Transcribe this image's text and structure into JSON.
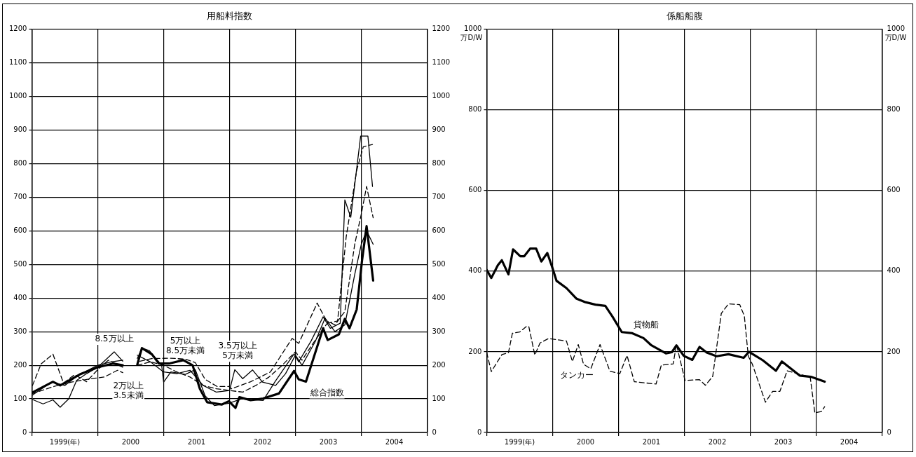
{
  "chart_data": [
    {
      "type": "line",
      "title": "用船料指数",
      "xlim": [
        1999,
        2005
      ],
      "xticks": [
        {
          "value": 1999,
          "label": null
        },
        {
          "value": 1999.5,
          "label": "1999(年)"
        },
        {
          "value": 2000,
          "label": null
        },
        {
          "value": 2000.5,
          "label": "2000"
        },
        {
          "value": 2001,
          "label": null
        },
        {
          "value": 2001.5,
          "label": "2001"
        },
        {
          "value": 2002,
          "label": null
        },
        {
          "value": 2002.5,
          "label": "2002"
        },
        {
          "value": 2003,
          "label": null
        },
        {
          "value": 2003.5,
          "label": "2003"
        },
        {
          "value": 2004,
          "label": null
        },
        {
          "value": 2004.5,
          "label": "2004"
        },
        {
          "value": 2005,
          "label": null
        }
      ],
      "ylim": [
        0,
        1200
      ],
      "yticks": [
        0,
        100,
        200,
        300,
        400,
        500,
        600,
        700,
        800,
        900,
        1000,
        1100,
        1200
      ],
      "y2lim": [
        0,
        1200
      ],
      "y2ticks": [
        0,
        100,
        200,
        300,
        400,
        500,
        600,
        700,
        800,
        900,
        1000,
        1100,
        1200
      ],
      "grid": true,
      "legend": false,
      "marker": "none",
      "series": [
        {
          "name": "総合指数",
          "color": "#000000",
          "line_style": "solid",
          "x": [
            1999.01,
            1999.32,
            1999.43,
            1999.73,
            2000.0,
            2000.23,
            2000.38,
            2000.45,
            2000.6,
            2000.67,
            2000.82,
            2000.93,
            2001.08,
            2001.3,
            2001.44,
            2001.55,
            2001.66,
            2001.88,
            2001.99,
            2002.09,
            2002.15,
            2002.32,
            2002.51,
            2002.75,
            2002.98,
            2003.05,
            2003.16,
            2003.42,
            2003.49,
            2003.66,
            2003.75,
            2003.82,
            2003.93,
            2004.01,
            2004.08,
            2004.18
          ],
          "values": [
            119,
            151,
            140,
            173,
            194,
            205,
            200,
            null,
            202,
            251,
            233,
            205,
            205,
            215,
            200,
            130,
            90,
            83,
            93,
            73,
            105,
            96,
            101,
            116,
            183,
            158,
            151,
            310,
            275,
            292,
            338,
            310,
            366,
            510,
            614,
            452
          ]
        },
        {
          "name": "8.5万以上",
          "color": "#000000",
          "line_style": "solid",
          "x": [
            1999.01,
            1999.17,
            1999.32,
            1999.43,
            1999.56,
            1999.68,
            1999.83,
            2000.0,
            2000.25,
            2000.38,
            2000.45,
            2000.6,
            2000.67,
            2000.78,
            2000.97,
            2001.0,
            2001.11,
            2001.33,
            2001.48,
            2001.63,
            2001.77,
            2001.99,
            2002.18,
            2002.51,
            2002.69,
            2002.98,
            2003.05,
            2003.24,
            2003.42,
            2003.53,
            2003.68,
            2003.75,
            2003.84,
            2003.99,
            2004.1,
            2004.17
          ],
          "values": [
            98,
            85,
            97,
            75,
            100,
            155,
            175,
            194,
            240,
            212,
            null,
            220,
            251,
            244,
            200,
            150,
            180,
            173,
            187,
            109,
            80,
            87,
            100,
            95,
            151,
            234,
            210,
            273,
            344,
            310,
            325,
            692,
            640,
            882,
            882,
            732
          ]
        },
        {
          "name": "5万以上\n8.5万未満",
          "color": "#000000",
          "line_style": "dashed",
          "x": [
            1999.01,
            1999.14,
            1999.32,
            1999.48,
            1999.65,
            1999.83,
            2000.0,
            2000.16,
            2000.38,
            2000.45,
            2000.64,
            2000.82,
            2001.11,
            2001.33,
            2001.48,
            2001.63,
            2001.81,
            2001.99,
            2002.03,
            2002.32,
            2002.62,
            2002.95,
            2003.05,
            2003.33,
            2003.49,
            2003.64,
            2003.77,
            2003.93,
            2004.03,
            2004.17
          ],
          "values": [
            140,
            204,
            233,
            147,
            172,
            151,
            187,
            215,
            194,
            null,
            212,
            220,
            221,
            218,
            208,
            158,
            137,
            137,
            130,
            151,
            180,
            280,
            265,
            385,
            325,
            332,
            581,
            780,
            850,
            857
          ]
        },
        {
          "name": "3.5万以上\n5万未満",
          "color": "#000000",
          "line_style": "solid",
          "x": [
            1999.0,
            1999.3,
            1999.5,
            1999.7,
            2000.0,
            2000.2,
            2000.38,
            2000.45,
            2000.6,
            2000.8,
            2001.0,
            2001.2,
            2001.4,
            2001.6,
            2001.8,
            2002.0,
            2002.08,
            2002.2,
            2002.35,
            2002.5,
            2002.7,
            2002.85,
            2003.0,
            2003.1,
            2003.3,
            2003.45,
            2003.6,
            2003.75,
            2003.9,
            2004.0,
            2004.08,
            2004.18
          ],
          "values": [
            110,
            150,
            140,
            170,
            200,
            210,
            215,
            null,
            230,
            210,
            180,
            175,
            185,
            140,
            120,
            125,
            187,
            160,
            186,
            150,
            140,
            175,
            230,
            200,
            270,
            340,
            300,
            320,
            470,
            560,
            600,
            560
          ]
        },
        {
          "name": "2万以上\n3.5未満",
          "color": "#000000",
          "line_style": "dashed",
          "x": [
            1999.0,
            1999.3,
            1999.6,
            1999.9,
            2000.1,
            2000.3,
            2000.38,
            2000.45,
            2000.6,
            2000.8,
            2001.0,
            2001.2,
            2001.4,
            2001.6,
            2001.8,
            2002.0,
            2002.2,
            2002.4,
            2002.6,
            2002.8,
            2003.0,
            2003.1,
            2003.25,
            2003.5,
            2003.6,
            2003.75,
            2003.9,
            2004.0,
            2004.08,
            2004.18
          ],
          "values": [
            115,
            135,
            150,
            160,
            165,
            185,
            178,
            null,
            200,
            210,
            200,
            180,
            165,
            140,
            130,
            125,
            120,
            140,
            165,
            200,
            240,
            215,
            260,
            330,
            320,
            360,
            560,
            650,
            732,
            639
          ]
        }
      ]
    },
    {
      "type": "line",
      "title": "係船船腹",
      "ylabel": "万D/W",
      "y2label": "万D/W",
      "xlim": [
        1999,
        2005
      ],
      "xticks": [
        {
          "value": 1999,
          "label": null
        },
        {
          "value": 1999.5,
          "label": "1999(年)"
        },
        {
          "value": 2000,
          "label": null
        },
        {
          "value": 2000.5,
          "label": "2000"
        },
        {
          "value": 2001,
          "label": null
        },
        {
          "value": 2001.5,
          "label": "2001"
        },
        {
          "value": 2002,
          "label": null
        },
        {
          "value": 2002.5,
          "label": "2002"
        },
        {
          "value": 2003,
          "label": null
        },
        {
          "value": 2003.5,
          "label": "2003"
        },
        {
          "value": 2004,
          "label": null
        },
        {
          "value": 2004.5,
          "label": "2004"
        },
        {
          "value": 2005,
          "label": null
        }
      ],
      "ylim": [
        0,
        1000
      ],
      "yticks": [
        0,
        200,
        400,
        600,
        800,
        1000
      ],
      "y2lim": [
        0,
        1000
      ],
      "y2ticks": [
        0,
        200,
        400,
        600,
        800,
        1000
      ],
      "grid": true,
      "legend": false,
      "marker": "none",
      "series": [
        {
          "name": "貨物船",
          "color": "#000000",
          "line_style": "solid",
          "x": [
            1999.0,
            1999.07,
            1999.17,
            1999.23,
            1999.33,
            1999.4,
            1999.51,
            1999.57,
            1999.66,
            1999.75,
            1999.83,
            1999.92,
            1999.99,
            2000.06,
            2000.21,
            2000.36,
            2000.5,
            2000.65,
            2000.8,
            2000.91,
            2001.05,
            2001.21,
            2001.38,
            2001.5,
            2001.72,
            2001.81,
            2001.88,
            2001.99,
            2002.12,
            2002.23,
            2002.34,
            2002.49,
            2002.67,
            2002.9,
            2002.98,
            2003.19,
            2003.39,
            2003.48,
            2003.75,
            2003.92,
            2004.13
          ],
          "values": [
            403,
            383,
            415,
            427,
            392,
            454,
            437,
            437,
            456,
            456,
            424,
            445,
            412,
            376,
            358,
            332,
            323,
            317,
            314,
            287,
            249,
            246,
            234,
            216,
            196,
            199,
            216,
            190,
            180,
            212,
            198,
            189,
            194,
            185,
            200,
            179,
            153,
            176,
            141,
            138,
            126
          ]
        },
        {
          "name": "タンカー",
          "color": "#000000",
          "line_style": "dashed",
          "x": [
            1999.0,
            1999.07,
            1999.23,
            1999.33,
            1999.39,
            1999.5,
            1999.61,
            1999.64,
            1999.73,
            1999.81,
            1999.94,
            2000.06,
            2000.21,
            2000.3,
            2000.39,
            2000.47,
            2000.58,
            2000.72,
            2000.87,
            2001.02,
            2001.13,
            2001.24,
            2001.57,
            2001.65,
            2001.83,
            2001.88,
            2002.01,
            2002.23,
            2002.32,
            2002.43,
            2002.56,
            2002.67,
            2002.84,
            2002.91,
            2002.97,
            2003.03,
            2003.23,
            2003.34,
            2003.45,
            2003.56,
            2003.91,
            2003.98,
            2004.08,
            2004.13
          ],
          "values": [
            198,
            151,
            193,
            198,
            246,
            249,
            264,
            262,
            192,
            222,
            233,
            230,
            227,
            176,
            218,
            169,
            158,
            218,
            152,
            146,
            191,
            126,
            120,
            167,
            170,
            218,
            129,
            131,
            117,
            139,
            295,
            319,
            317,
            289,
            189,
            170,
            75,
            102,
            102,
            153,
            137,
            49,
            52,
            64
          ]
        }
      ]
    }
  ]
}
